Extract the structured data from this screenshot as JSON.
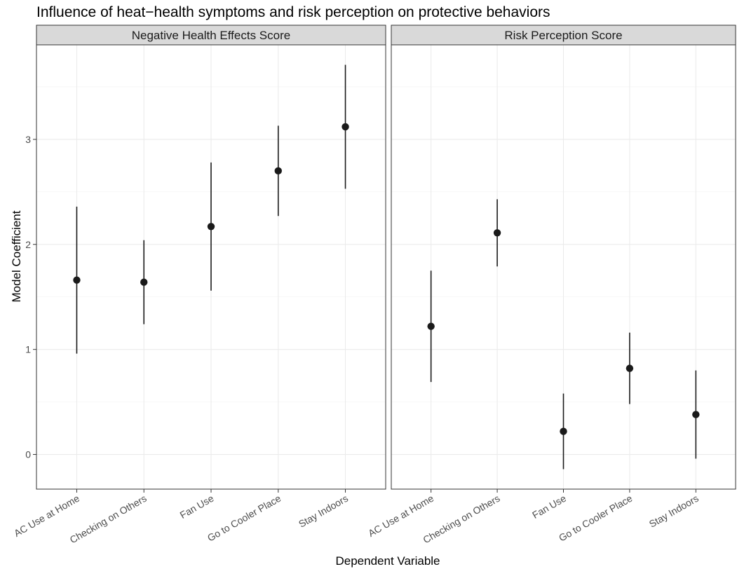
{
  "chart_data": {
    "type": "scatter",
    "title": "Influence of heat−health symptoms and risk perception on protective behaviors",
    "xlabel": "Dependent Variable",
    "ylabel": "Model Coefficient",
    "categories": [
      "AC Use at Home",
      "Checking on Others",
      "Fan Use",
      "Go to Cooler Place",
      "Stay Indoors"
    ],
    "y_ticks": [
      0,
      1,
      2,
      3
    ],
    "ylim": [
      -0.33,
      3.9
    ],
    "grid": true,
    "panels": [
      {
        "name": "Negative Health Effects Score",
        "estimate": [
          1.66,
          1.64,
          2.17,
          2.7,
          3.12
        ],
        "lower": [
          0.96,
          1.24,
          1.56,
          2.27,
          2.53
        ],
        "upper": [
          2.36,
          2.04,
          2.78,
          3.13,
          3.71
        ]
      },
      {
        "name": "Risk Perception Score",
        "estimate": [
          1.22,
          2.11,
          0.22,
          0.82,
          0.38
        ],
        "lower": [
          0.69,
          1.79,
          -0.14,
          0.48,
          -0.04
        ],
        "upper": [
          1.75,
          2.43,
          0.58,
          1.16,
          0.8
        ]
      }
    ]
  }
}
